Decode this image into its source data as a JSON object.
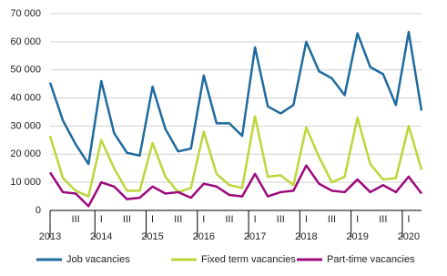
{
  "chart_data": {
    "type": "line",
    "categories": [
      "I",
      null,
      "III",
      null,
      "I",
      null,
      "III",
      null,
      "I",
      null,
      "III",
      null,
      "I",
      null,
      "III",
      null,
      "I",
      null,
      "III",
      null,
      "I",
      null,
      "III",
      null,
      "I",
      null,
      "III",
      null,
      "I",
      null
    ],
    "years": [
      "2013",
      "2014",
      "2015",
      "2016",
      "2017",
      "2018",
      "2019",
      "2020"
    ],
    "series": [
      {
        "name": "Job vacancies",
        "color": "#1f6b9e",
        "values": [
          45500,
          32000,
          23500,
          16500,
          46000,
          27500,
          20500,
          19500,
          44000,
          29000,
          21000,
          22000,
          48000,
          31000,
          31000,
          26500,
          58000,
          37000,
          34500,
          37500,
          60000,
          49500,
          47000,
          41000,
          63000,
          51000,
          48500,
          37500,
          63500,
          35500
        ]
      },
      {
        "name": "Fixed term vacancies",
        "color": "#bcd63a",
        "values": [
          26500,
          11500,
          7000,
          5000,
          25000,
          15000,
          7000,
          7000,
          24000,
          12000,
          6500,
          8000,
          28000,
          13000,
          9000,
          8000,
          33500,
          12000,
          12500,
          9000,
          29500,
          19000,
          10000,
          12000,
          33000,
          16500,
          11000,
          11500,
          30000,
          14500
        ]
      },
      {
        "name": "Part-time vacancies",
        "color": "#9c0a7d",
        "values": [
          13500,
          6500,
          6000,
          1500,
          10000,
          8500,
          4000,
          4500,
          8500,
          6000,
          6500,
          4500,
          9500,
          8500,
          5500,
          5000,
          13000,
          5000,
          6500,
          7000,
          16000,
          9500,
          7000,
          6500,
          11000,
          6500,
          9000,
          6500,
          12000,
          6000
        ]
      }
    ],
    "ylim": [
      0,
      70000
    ],
    "yticks": [
      0,
      {
        "value": 10000,
        "label": "10 000"
      },
      {
        "value": 20000,
        "label": "20 000"
      },
      {
        "value": 30000,
        "label": "30 000"
      },
      {
        "value": 40000,
        "label": "40 000"
      },
      {
        "value": 50000,
        "label": "50 000"
      },
      {
        "value": 60000,
        "label": "60 000"
      },
      {
        "value": 70000,
        "label": "70 000"
      }
    ],
    "grid": true
  }
}
